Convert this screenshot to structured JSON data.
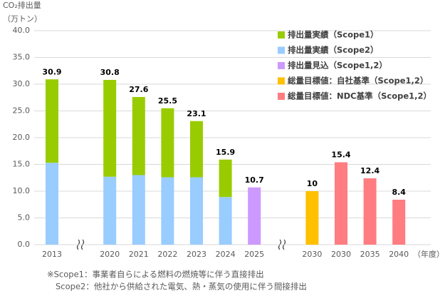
{
  "chart_data": {
    "type": "stacked_bar",
    "y_axis_title": "CO₂排出量",
    "y_unit": "（万トン）",
    "x_unit": "（年度）",
    "categories": [
      "2013",
      null,
      "2020",
      "2021",
      "2022",
      "2023",
      "2024",
      "2025",
      null,
      "2030",
      "2030",
      "2035",
      "2040"
    ],
    "series": [
      {
        "name": "排出量実績（Scope2）",
        "color": "#99ccff",
        "values": [
          15.3,
          null,
          12.7,
          13.0,
          12.6,
          12.6,
          8.9,
          null,
          null,
          null,
          null,
          null,
          null
        ]
      },
      {
        "name": "排出量実績（Scope1）",
        "color": "#99cc00",
        "values": [
          15.6,
          null,
          18.1,
          14.6,
          12.9,
          10.5,
          7.0,
          null,
          null,
          null,
          null,
          null,
          null
        ]
      },
      {
        "name": "排出量見込（Scope1,2）",
        "color": "#cc99ff",
        "values": [
          null,
          null,
          null,
          null,
          null,
          null,
          null,
          10.7,
          null,
          null,
          null,
          null,
          null
        ]
      },
      {
        "name": "総量目標値：自社基準（Scope1,2）",
        "color": "#ffc000",
        "values": [
          null,
          null,
          null,
          null,
          null,
          null,
          null,
          null,
          null,
          10,
          null,
          null,
          null
        ]
      },
      {
        "name": "総量目標値：NDC基準（Scope1,2）",
        "color": "#ff7c80",
        "values": [
          null,
          null,
          null,
          null,
          null,
          null,
          null,
          null,
          null,
          null,
          15.4,
          12.4,
          8.4
        ]
      }
    ],
    "legend_order": [
      1,
      0,
      2,
      3,
      4
    ],
    "totals": [
      30.9,
      null,
      30.8,
      27.6,
      25.5,
      23.1,
      15.9,
      10.7,
      null,
      10,
      15.4,
      12.4,
      8.4
    ],
    "ylim": [
      0,
      40
    ],
    "yticks": [
      {
        "value": 0,
        "label": "0.0"
      },
      {
        "value": 5,
        "label": "5.0"
      },
      {
        "value": 10,
        "label": "10.0"
      },
      {
        "value": 15,
        "label": "15.0"
      },
      {
        "value": 20,
        "label": "20.0"
      },
      {
        "value": 25,
        "label": "25.0"
      },
      {
        "value": 30,
        "label": "30.0"
      },
      {
        "value": 35,
        "label": "35.0"
      },
      {
        "value": 40,
        "label": "40.0"
      }
    ],
    "grid": true,
    "notes": [
      "※Scope1：事業者自らによる燃料の燃焼等に伴う直接排出",
      "Scope2：他社から供給された電気、熱・蒸気の使用に伴う間接排出"
    ]
  }
}
